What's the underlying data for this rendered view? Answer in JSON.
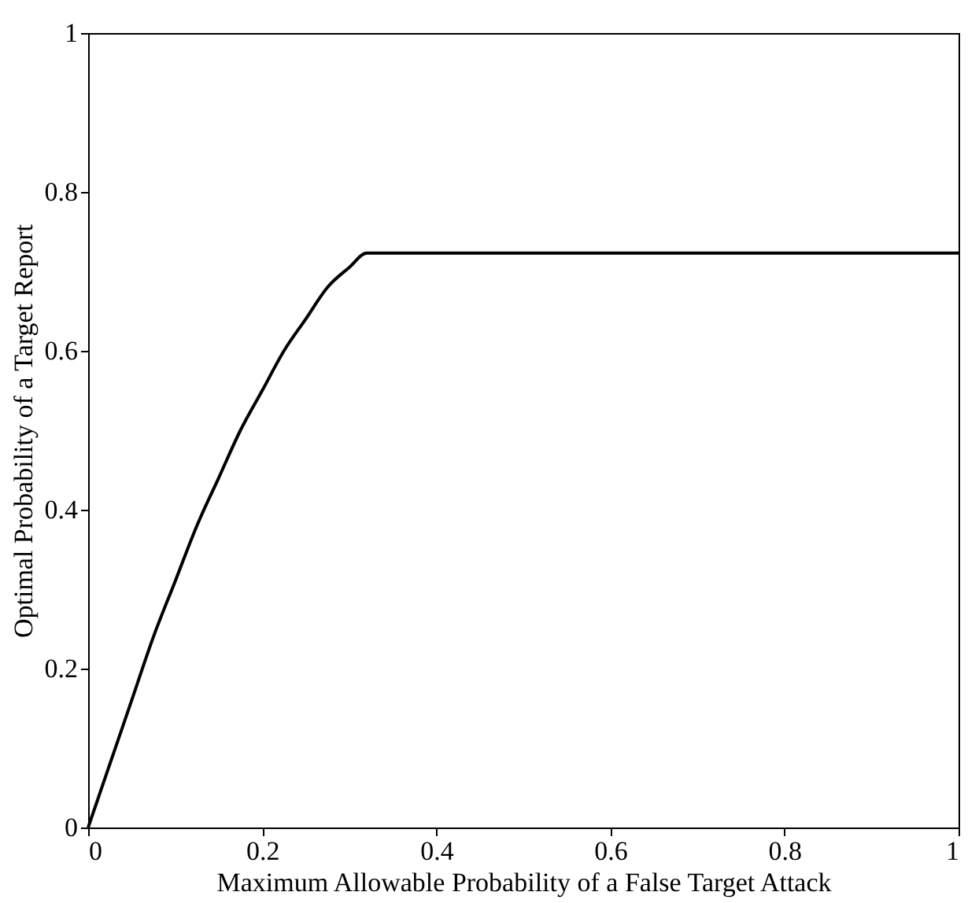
{
  "chart_data": {
    "type": "line",
    "xlabel": "Maximum Allowable Probability of a False Target Attack",
    "ylabel": "Optimal Probability of a Target Report",
    "x": [
      0,
      0.025,
      0.05,
      0.075,
      0.1,
      0.125,
      0.15,
      0.175,
      0.2,
      0.225,
      0.25,
      0.275,
      0.3,
      0.32,
      1
    ],
    "series": [
      {
        "color": "#000000",
        "values": [
          0,
          0.08,
          0.16,
          0.24,
          0.31,
          0.38,
          0.44,
          0.5,
          0.55,
          0.6,
          0.64,
          0.68,
          0.705,
          0.723,
          0.723
        ]
      }
    ],
    "xlim": [
      0,
      1
    ],
    "ylim": [
      0,
      1
    ],
    "xticks": [
      0,
      0.2,
      0.4,
      0.6,
      0.8,
      1
    ],
    "yticks": [
      0,
      0.2,
      0.4,
      0.6,
      0.8,
      1
    ],
    "grid": false,
    "marker": "none",
    "line_style": "solid"
  }
}
